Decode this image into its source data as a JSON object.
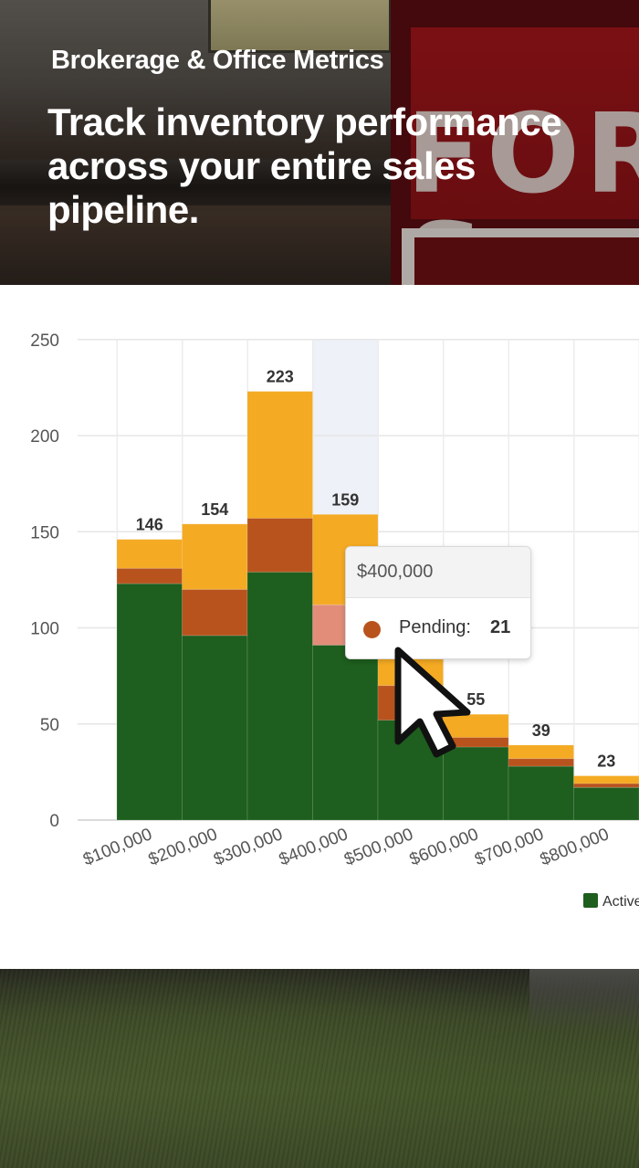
{
  "header": {
    "kicker": "Brokerage & Office Metrics",
    "headline": "Track inventory performance across your entire sales pipeline.",
    "sign_text": "FOR S"
  },
  "chart_data": {
    "type": "bar",
    "stacked": true,
    "categories": [
      "$100,000",
      "$200,000",
      "$300,000",
      "$400,000",
      "$500,000",
      "$600,000",
      "$700,000",
      "$800,000"
    ],
    "series": [
      {
        "name": "Active",
        "values": [
          123,
          96,
          129,
          91,
          52,
          38,
          28,
          17
        ],
        "color": "#1e5e1e"
      },
      {
        "name": "Pending",
        "values": [
          8,
          24,
          28,
          21,
          18,
          5,
          4,
          2
        ],
        "color": "#b8531e"
      },
      {
        "name": "",
        "values": [
          15,
          34,
          66,
          47,
          29,
          12,
          7,
          4
        ],
        "color": "#f4aa23"
      }
    ],
    "totals": [
      146,
      154,
      223,
      159,
      99,
      55,
      39,
      23
    ],
    "total_labels": [
      "146",
      "154",
      "223",
      "159",
      "",
      "55",
      "39",
      "23"
    ],
    "y_ticks": [
      0,
      50,
      100,
      150,
      200,
      250
    ],
    "ylim": [
      0,
      250
    ],
    "grid": true,
    "legend_position": "bottom-right",
    "legend_items": [
      "Active"
    ],
    "highlighted_category": "$400,000"
  },
  "tooltip": {
    "title": "$400,000",
    "series_label": "Pending:",
    "value": "21",
    "dot_color": "#b8531e"
  }
}
